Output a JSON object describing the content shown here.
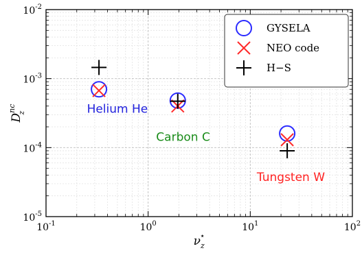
{
  "chart_data": {
    "type": "scatter",
    "xscale": "log",
    "yscale": "log",
    "xlim": [
      0.1,
      100
    ],
    "ylim": [
      1e-05,
      0.01
    ],
    "grid": true,
    "legend_position": "top-right",
    "xlabel": {
      "base": "ν",
      "sub": "z",
      "sup": "⋆"
    },
    "ylabel": {
      "base": "D",
      "sub": "z",
      "sup": "nc"
    },
    "x_ticks": [
      {
        "value": 0.1,
        "base": "10",
        "exp": "-1"
      },
      {
        "value": 1,
        "base": "10",
        "exp": "0"
      },
      {
        "value": 10,
        "base": "10",
        "exp": "1"
      },
      {
        "value": 100,
        "base": "10",
        "exp": "2"
      }
    ],
    "y_ticks": [
      {
        "value": 1e-05,
        "base": "10",
        "exp": "-5"
      },
      {
        "value": 0.0001,
        "base": "10",
        "exp": "-4"
      },
      {
        "value": 0.001,
        "base": "10",
        "exp": "-3"
      },
      {
        "value": 0.01,
        "base": "10",
        "exp": "-2"
      }
    ],
    "series": [
      {
        "name": "GYSELA",
        "marker": "circle",
        "color": "#2a2aff",
        "points": [
          {
            "x": 0.33,
            "y": 0.0007
          },
          {
            "x": 1.95,
            "y": 0.00048
          },
          {
            "x": 23,
            "y": 0.00016
          }
        ]
      },
      {
        "name": "NEO code",
        "marker": "x",
        "color": "#ff2a2a",
        "points": [
          {
            "x": 0.33,
            "y": 0.00067
          },
          {
            "x": 1.95,
            "y": 0.0004
          },
          {
            "x": 23,
            "y": 0.00013
          }
        ]
      },
      {
        "name": "H−S",
        "marker": "plus",
        "color": "#000000",
        "points": [
          {
            "x": 0.33,
            "y": 0.00145
          },
          {
            "x": 1.95,
            "y": 0.00047
          },
          {
            "x": 23,
            "y": 9e-05
          }
        ]
      }
    ],
    "annotations": [
      {
        "text": "Helium He",
        "color": "#2222dd",
        "x": 0.5,
        "y": 0.00032
      },
      {
        "text": "Carbon C",
        "color": "#1a8c1a",
        "x": 2.2,
        "y": 0.000125
      },
      {
        "text": "Tungsten W",
        "color": "#ff2222",
        "x": 25,
        "y": 3.3e-05
      }
    ]
  }
}
